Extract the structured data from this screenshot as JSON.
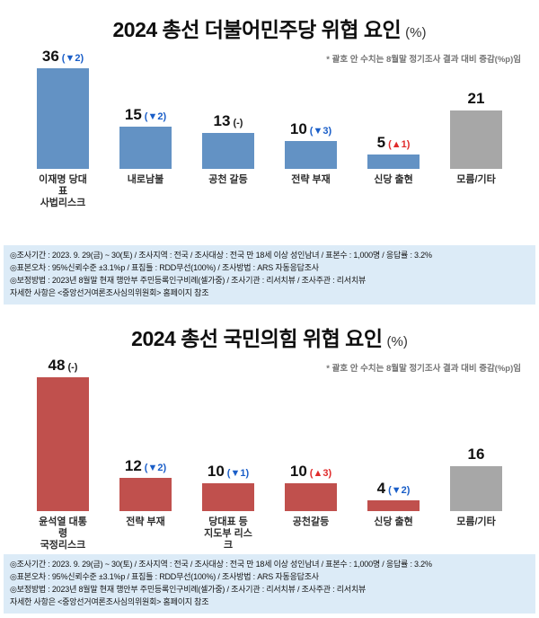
{
  "page": {
    "background": "#ffffff",
    "info_box_background": "#dcebf7"
  },
  "chart_data": [
    {
      "type": "bar",
      "title": "2024 총선 더불어민주당 위협 요인",
      "unit": "(%)",
      "note": "* 괄호 안 수치는 8월말 정기조사 결과 대비 증감(%p)임",
      "xlabel": "",
      "ylabel": "",
      "ylim": [
        0,
        50
      ],
      "grid": false,
      "legend": "none",
      "colors": {
        "bar": "#6392c4",
        "other": "#a7a7a7",
        "up": "#e02b2b",
        "down": "#1a5ec8",
        "none": "#222222"
      },
      "bars": [
        {
          "category": "이재명 당대표\n사법리스크",
          "value": 36,
          "change": "▼2",
          "direction": "down",
          "series": "party"
        },
        {
          "category": "내로남불",
          "value": 15,
          "change": "▼2",
          "direction": "down",
          "series": "party"
        },
        {
          "category": "공천 갈등",
          "value": 13,
          "change": "-",
          "direction": "none",
          "series": "party"
        },
        {
          "category": "전략 부재",
          "value": 10,
          "change": "▼3",
          "direction": "down",
          "series": "party"
        },
        {
          "category": "신당 출현",
          "value": 5,
          "change": "▲1",
          "direction": "up",
          "series": "party"
        },
        {
          "category": "모름/기타",
          "value": 21,
          "change": "",
          "direction": "none",
          "series": "other"
        }
      ],
      "info_lines": [
        "◎조사기간 : 2023. 9. 29(금) ~ 30(토) / 조사지역 : 전국 / 조사대상 : 전국 만 18세 이상 성인남녀 / 표본수 : 1,000명 / 응답률 : 3.2%",
        "◎표본오차 : 95%신뢰수준 ±3.1%p / 표집틀 : RDD무선(100%) / 조사방법 : ARS 자동응답조사",
        "◎보정방법 : 2023년 8월말 현재 행안부 주민등록인구비례(셀가중) / 조사기관 : 리서치뷰 / 조사주관 : 리서치뷰",
        "자세한 사항은 <중앙선거여론조사심의위원회> 홈페이지 참조"
      ]
    },
    {
      "type": "bar",
      "title": "2024 총선 국민의힘 위협 요인",
      "unit": "(%)",
      "note": "* 괄호 안 수치는 8월말 정기조사 결과 대비 증감(%p)임",
      "xlabel": "",
      "ylabel": "",
      "ylim": [
        0,
        55
      ],
      "grid": false,
      "legend": "none",
      "colors": {
        "bar": "#c0504d",
        "other": "#a7a7a7",
        "up": "#e02b2b",
        "down": "#1a5ec8",
        "none": "#222222"
      },
      "bars": [
        {
          "category": "윤석열 대통령\n국정리스크",
          "value": 48,
          "change": "-",
          "direction": "none",
          "series": "party"
        },
        {
          "category": "전략 부재",
          "value": 12,
          "change": "▼2",
          "direction": "down",
          "series": "party"
        },
        {
          "category": "당대표 등\n지도부 리스크",
          "value": 10,
          "change": "▼1",
          "direction": "down",
          "series": "party"
        },
        {
          "category": "공천갈등",
          "value": 10,
          "change": "▲3",
          "direction": "up",
          "series": "party"
        },
        {
          "category": "신당 출현",
          "value": 4,
          "change": "▼2",
          "direction": "down",
          "series": "party"
        },
        {
          "category": "모름/기타",
          "value": 16,
          "change": "",
          "direction": "none",
          "series": "other"
        }
      ],
      "info_lines": [
        "◎조사기간 : 2023. 9. 29(금) ~ 30(토) / 조사지역 : 전국 / 조사대상 : 전국 만 18세 이상 성인남녀 / 표본수 : 1,000명 / 응답률 : 3.2%",
        "◎표본오차 : 95%신뢰수준 ±3.1%p / 표집틀 : RDD무선(100%) / 조사방법 : ARS 자동응답조사",
        "◎보정방법 : 2023년 8월말 현재 행안부 주민등록인구비례(셀가중) / 조사기관 : 리서치뷰 / 조사주관 : 리서치뷰",
        "자세한 사항은 <중앙선거여론조사심의위원회> 홈페이지 참조"
      ]
    }
  ]
}
